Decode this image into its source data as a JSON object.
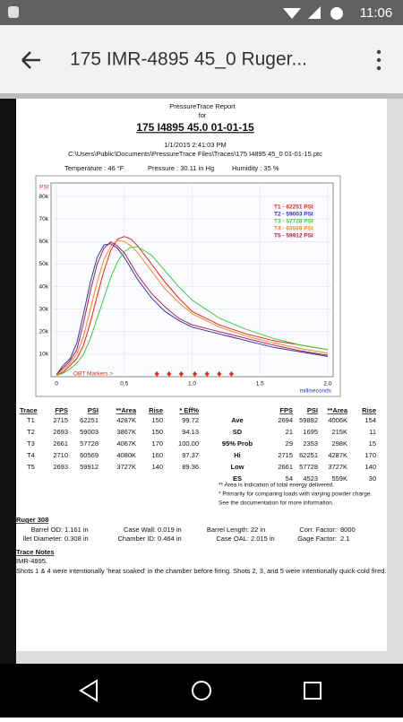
{
  "status_bar": {
    "time": "11:06"
  },
  "app_bar": {
    "title": "175 IMR-4895 45_0 Ruger..."
  },
  "report": {
    "heading": "PressureTrace Report",
    "for": "for",
    "title": "175 I4895 45.0 01-01-15",
    "datetime": "1/1/2015 2:41:03 PM",
    "path": "C:\\Users\\Public\\Documents\\PressureTrace Files\\Traces\\175 I4895 45_0 01-01-15.ptc",
    "conditions": [
      "Temperature : 46 °F",
      "Pressure : 30.11 in Hg",
      "Humidity : 35 %"
    ]
  },
  "chart_data": {
    "type": "line",
    "y_axis_label": "PSI",
    "x_axis_label": "milliseconds",
    "xlim": [
      -0.04,
      2.04
    ],
    "ylim": [
      0,
      86000
    ],
    "xticks": [
      0,
      0.5,
      {
        "value": 1,
        "label": "1.0"
      },
      1.5,
      {
        "value": 2,
        "label": "2.0"
      }
    ],
    "yticks": [
      {
        "value": 10000,
        "label": "10k"
      },
      {
        "value": 20000,
        "label": "20k"
      },
      {
        "value": 30000,
        "label": "30k"
      },
      {
        "value": 40000,
        "label": "40k"
      },
      {
        "value": 50000,
        "label": "50k"
      },
      {
        "value": 60000,
        "label": "60k"
      },
      {
        "value": 70000,
        "label": "70k"
      },
      {
        "value": 80000,
        "label": "80k"
      }
    ],
    "grid": true,
    "x": [
      0,
      0.05,
      0.1,
      0.15,
      0.2,
      0.25,
      0.3,
      0.35,
      0.4,
      0.45,
      0.5,
      0.55,
      0.6,
      0.7,
      0.8,
      0.9,
      1.0,
      1.2,
      1.4,
      1.6,
      1.8,
      2.0
    ],
    "series": [
      {
        "name": "T1 -  62251 PSI",
        "color": "#e8231f",
        "values": [
          500,
          2000,
          5000,
          8000,
          14000,
          24000,
          36000,
          47000,
          56000,
          61000,
          62250,
          61000,
          58000,
          50000,
          42000,
          35000,
          29000,
          23000,
          19000,
          16000,
          14000,
          12000
        ]
      },
      {
        "name": "T2 -  59003 PSI",
        "color": "#2f2fb0",
        "values": [
          1000,
          5000,
          8000,
          15000,
          28000,
          42000,
          53000,
          58500,
          59000,
          57000,
          53000,
          48000,
          43000,
          35000,
          29000,
          25000,
          22000,
          19000,
          16000,
          13000,
          11000,
          9000
        ]
      },
      {
        "name": "T3 -  57728 PSI",
        "color": "#3ecb3e",
        "values": [
          500,
          1500,
          3500,
          6000,
          10000,
          17000,
          26000,
          35000,
          44000,
          51000,
          55500,
          57500,
          57700,
          54000,
          47000,
          40000,
          34000,
          26000,
          21000,
          17000,
          14000,
          12000
        ]
      },
      {
        "name": "T4 -  60569 PSI",
        "color": "#f08a1c",
        "values": [
          500,
          3000,
          6000,
          10000,
          18000,
          30000,
          42000,
          52000,
          58000,
          60500,
          60000,
          58000,
          55000,
          47000,
          39000,
          33000,
          28000,
          22000,
          18000,
          15000,
          12500,
          10500
        ]
      },
      {
        "name": "T5 -  59912 PSI",
        "color": "#b02040",
        "values": [
          1000,
          4000,
          7000,
          12000,
          24000,
          38000,
          50000,
          57000,
          59900,
          58000,
          55000,
          50000,
          45000,
          37000,
          31000,
          26000,
          23000,
          20000,
          17000,
          14000,
          11500,
          9500
        ]
      }
    ],
    "markers_label": "OBT Markers >",
    "markers_color": "#e8231f",
    "markers_x": [
      0.74,
      0.83,
      0.92,
      1.02,
      1.11,
      1.2,
      1.29
    ]
  },
  "trace_table": {
    "headers": [
      "Trace",
      "FPS",
      "PSI",
      "**Area",
      "Rise",
      "* Eff%"
    ],
    "rows": [
      [
        "T1",
        "2715",
        "62251",
        "4287K",
        "150",
        "99.72"
      ],
      [
        "T2",
        "2693",
        "59003",
        "3867K",
        "150",
        "94.13"
      ],
      [
        "T3",
        "2661",
        "57728",
        "4067K",
        "170",
        "100.00"
      ],
      [
        "T4",
        "2710",
        "60569",
        "4080K",
        "160",
        "97.37"
      ],
      [
        "T5",
        "2693",
        "59912",
        "3727K",
        "140",
        "89.36"
      ]
    ]
  },
  "stats_table": {
    "headers": [
      "FPS",
      "PSI",
      "**Area",
      "Rise"
    ],
    "rows": [
      [
        "Ave",
        "2694",
        "59892",
        "4006K",
        "154"
      ],
      [
        "SD",
        "21",
        "1695",
        "215K",
        "11"
      ],
      [
        "95% Prob",
        "29",
        "2353",
        "298K",
        "15"
      ],
      [
        "Hi",
        "2715",
        "62251",
        "4287K",
        "170"
      ],
      [
        "Low",
        "2661",
        "57728",
        "3727K",
        "140"
      ],
      [
        "ES",
        "54",
        "4523",
        "559K",
        "30"
      ]
    ]
  },
  "notes": [
    "** Area is indication of total energy delivered.",
    "* Primarily for comparing loads with varying powder charge.",
    "See the documentation for more information."
  ],
  "rifle": {
    "title": "Ruger 308",
    "fields": [
      [
        "Barrel OD:",
        "1.161 in"
      ],
      [
        "Case Wall:",
        "0.019 in"
      ],
      [
        "Barrel Length:",
        "22 in"
      ],
      [
        "Corr. Factor:",
        "8000"
      ],
      [
        "llet Diameter:",
        "0.308 in"
      ],
      [
        "Chamber ID:",
        "0.464 in"
      ],
      [
        "Case OAL:",
        "2.015 in"
      ],
      [
        "Gage Factor:",
        "2.1"
      ]
    ]
  },
  "trace_notes": {
    "title": "Trace Notes",
    "lines": [
      "IMR-4895.",
      "Shots 1 & 4 were intentionally 'heat soaked' in the chamber before firing.  Shots 2, 3, and 5 were intentionally quick-cold fired."
    ]
  }
}
